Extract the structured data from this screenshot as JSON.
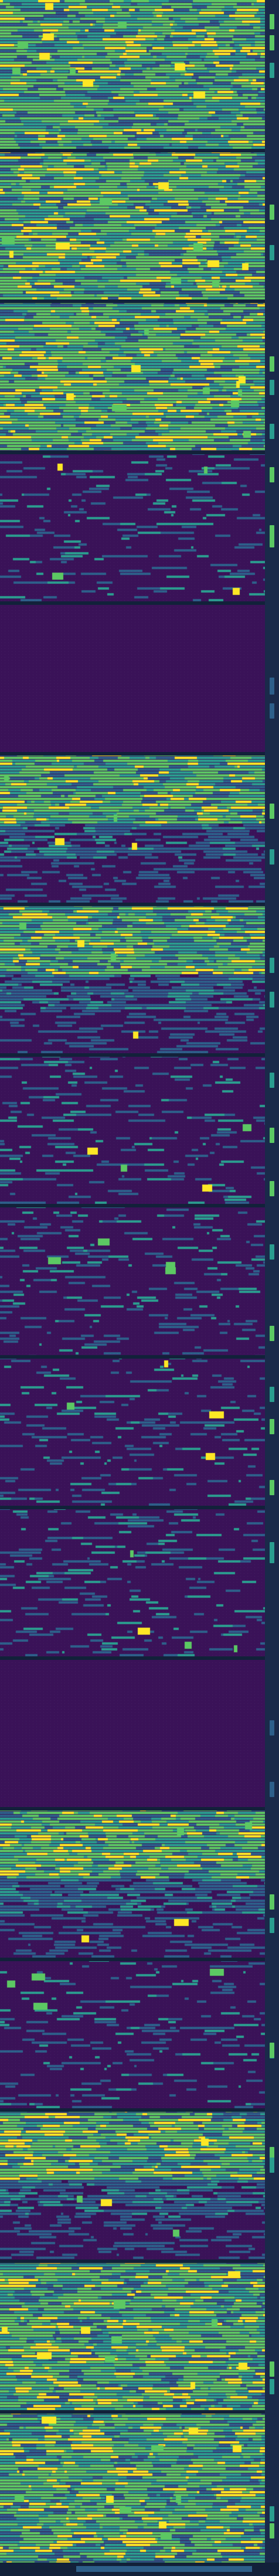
{
  "colors": {
    "background": "#12213a",
    "empty": "#3a1258",
    "mid": "#2d5f8a",
    "teal": "#2a9d8f",
    "green": "#5cc863",
    "yellow": "#fde725",
    "gutter": "#1a2a4a"
  },
  "bands": [
    {
      "kind": "dense"
    },
    {
      "kind": "dense"
    },
    {
      "kind": "dense"
    },
    {
      "kind": "sparse"
    },
    {
      "kind": "empty"
    },
    {
      "kind": "mixed"
    },
    {
      "kind": "mixed"
    },
    {
      "kind": "sparse"
    },
    {
      "kind": "sparse"
    },
    {
      "kind": "sparse"
    },
    {
      "kind": "sparse"
    },
    {
      "kind": "empty"
    },
    {
      "kind": "mixed"
    },
    {
      "kind": "sparse"
    },
    {
      "kind": "mixed"
    },
    {
      "kind": "dense"
    },
    {
      "kind": "dense"
    }
  ],
  "footer": {
    "label": ""
  }
}
